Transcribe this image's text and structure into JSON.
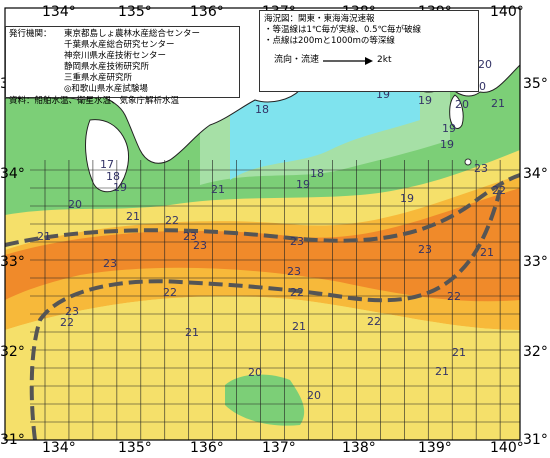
{
  "lon_labels": [
    "134°",
    "135°",
    "136°",
    "137°",
    "138°",
    "139°",
    "140°"
  ],
  "lat_labels": [
    "35°",
    "34°",
    "33°",
    "32°",
    "31°"
  ],
  "organizations": {
    "label": "発行機関：",
    "items": [
      "東京都島しょ農林水産総合センター",
      "千葉県水産総合研究センター",
      "神奈川県水産技術センター",
      "静岡県水産技術研究所",
      "三重県水産研究所",
      "◎和歌山県水産試験場"
    ],
    "source": "資料：船舶水温、衛星水温、気象庁解析水温"
  },
  "legend": {
    "title": "海況図：関東・東海海況速報",
    "line1": "・等温線は1℃毎が実線、0.5℃毎が破線",
    "line2": "・点線は200mと1000mの等深線",
    "flow_label": "流向・流速",
    "flow_speed": "2kt"
  },
  "isotherm_labels": [
    {
      "text": "20"
    },
    {
      "text": "20"
    },
    {
      "text": "20"
    },
    {
      "text": "19"
    },
    {
      "text": "19"
    },
    {
      "text": "19"
    },
    {
      "text": "19"
    },
    {
      "text": "18"
    },
    {
      "text": "18"
    },
    {
      "text": "19"
    },
    {
      "text": "19"
    },
    {
      "text": "17"
    },
    {
      "text": "18"
    },
    {
      "text": "19"
    },
    {
      "text": "20"
    },
    {
      "text": "21"
    },
    {
      "text": "22"
    },
    {
      "text": "23"
    },
    {
      "text": "23"
    },
    {
      "text": "23"
    },
    {
      "text": "23"
    },
    {
      "text": "22"
    },
    {
      "text": "21"
    },
    {
      "text": "23"
    },
    {
      "text": "23"
    },
    {
      "text": "22"
    },
    {
      "text": "22"
    },
    {
      "text": "21"
    },
    {
      "text": "23"
    },
    {
      "text": "22"
    },
    {
      "text": "21"
    },
    {
      "text": "21"
    },
    {
      "text": "20"
    },
    {
      "text": "20"
    },
    {
      "text": "21"
    },
    {
      "text": "21"
    },
    {
      "text": "22"
    },
    {
      "text": "22"
    },
    {
      "text": "23"
    },
    {
      "text": "21"
    },
    {
      "text": "21"
    }
  ],
  "colors": {
    "land": "#ffffff",
    "sea_cold": "#7fe3ee",
    "sea_cool": "#a6e0a6",
    "sea_mid": "#7ccf77",
    "sea_warm": "#f5e06a",
    "sea_warmer": "#f7b93a",
    "sea_hot": "#f08a2a",
    "current": "#555555"
  }
}
